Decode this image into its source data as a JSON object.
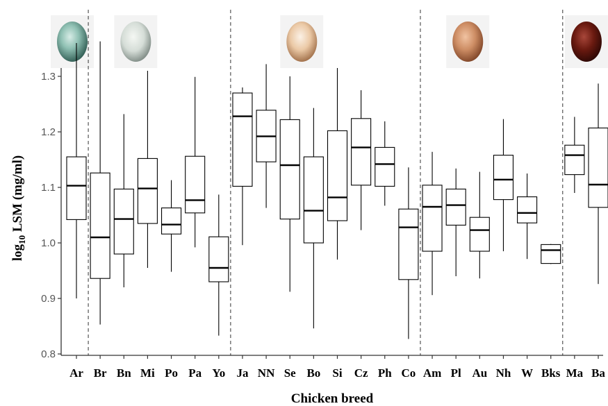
{
  "chart_data": {
    "type": "box",
    "xlabel": "Chicken breed",
    "ylabel": {
      "prefix": "log",
      "subscript": "10",
      "rest": " LSM (mg/ml)"
    },
    "ylim": [
      0.79,
      1.35
    ],
    "yticks": [
      0.8,
      0.9,
      1.0,
      1.1,
      1.2,
      1.3
    ],
    "ytick_labels": [
      "0.8",
      "0.9",
      "1.0",
      "1.1",
      "1.2",
      "1.3"
    ],
    "grid": false,
    "categories": [
      "Ar",
      "Br",
      "Bn",
      "Mi",
      "Po",
      "Pa",
      "Yo",
      "Ja",
      "NN",
      "Se",
      "Bo",
      "Si",
      "Cz",
      "Ph",
      "Co",
      "Am",
      "Pl",
      "Au",
      "Nh",
      "W",
      "Bks",
      "Ma",
      "Ba"
    ],
    "boxes": [
      {
        "category": "Ar",
        "min": 0.9,
        "q1": 1.042,
        "median": 1.103,
        "q3": 1.155,
        "max": 1.36
      },
      {
        "category": "Br",
        "min": 0.853,
        "q1": 0.936,
        "median": 1.01,
        "q3": 1.126,
        "max": 1.363
      },
      {
        "category": "Bn",
        "min": 0.92,
        "q1": 0.98,
        "median": 1.043,
        "q3": 1.097,
        "max": 1.232
      },
      {
        "category": "Mi",
        "min": 0.955,
        "q1": 1.035,
        "median": 1.098,
        "q3": 1.152,
        "max": 1.31
      },
      {
        "category": "Po",
        "min": 0.948,
        "q1": 1.016,
        "median": 1.033,
        "q3": 1.063,
        "max": 1.113
      },
      {
        "category": "Pa",
        "min": 0.992,
        "q1": 1.054,
        "median": 1.077,
        "q3": 1.156,
        "max": 1.299
      },
      {
        "category": "Yo",
        "min": 0.833,
        "q1": 0.93,
        "median": 0.955,
        "q3": 1.011,
        "max": 1.087
      },
      {
        "category": "Ja",
        "min": 0.996,
        "q1": 1.102,
        "median": 1.228,
        "q3": 1.27,
        "max": 1.28
      },
      {
        "category": "NN",
        "min": 1.063,
        "q1": 1.146,
        "median": 1.192,
        "q3": 1.239,
        "max": 1.322
      },
      {
        "category": "Se",
        "min": 0.912,
        "q1": 1.043,
        "median": 1.14,
        "q3": 1.222,
        "max": 1.3
      },
      {
        "category": "Bo",
        "min": 0.846,
        "q1": 1.0,
        "median": 1.058,
        "q3": 1.155,
        "max": 1.243
      },
      {
        "category": "Si",
        "min": 0.97,
        "q1": 1.04,
        "median": 1.082,
        "q3": 1.202,
        "max": 1.315
      },
      {
        "category": "Cz",
        "min": 1.023,
        "q1": 1.104,
        "median": 1.172,
        "q3": 1.224,
        "max": 1.275
      },
      {
        "category": "Ph",
        "min": 1.067,
        "q1": 1.102,
        "median": 1.142,
        "q3": 1.172,
        "max": 1.219
      },
      {
        "category": "Co",
        "min": 0.827,
        "q1": 0.934,
        "median": 1.028,
        "q3": 1.061,
        "max": 1.136
      },
      {
        "category": "Am",
        "min": 0.906,
        "q1": 0.985,
        "median": 1.065,
        "q3": 1.104,
        "max": 1.164
      },
      {
        "category": "Pl",
        "min": 0.94,
        "q1": 1.032,
        "median": 1.068,
        "q3": 1.097,
        "max": 1.134
      },
      {
        "category": "Au",
        "min": 0.936,
        "q1": 0.985,
        "median": 1.023,
        "q3": 1.046,
        "max": 1.128
      },
      {
        "category": "Nh",
        "min": 0.985,
        "q1": 1.078,
        "median": 1.114,
        "q3": 1.158,
        "max": 1.223
      },
      {
        "category": "W",
        "min": 0.971,
        "q1": 1.036,
        "median": 1.054,
        "q3": 1.083,
        "max": 1.125
      },
      {
        "category": "Bks",
        "min": 0.962,
        "q1": 0.963,
        "median": 0.987,
        "q3": 0.997,
        "max": 0.998
      },
      {
        "category": "Ma",
        "min": 1.09,
        "q1": 1.123,
        "median": 1.158,
        "q3": 1.176,
        "max": 1.227
      },
      {
        "category": "Ba",
        "min": 0.926,
        "q1": 1.064,
        "median": 1.105,
        "q3": 1.207,
        "max": 1.287
      }
    ],
    "group_dividers_between": [
      [
        "Ar",
        "Br"
      ],
      [
        "Yo",
        "Ja"
      ],
      [
        "Co",
        "Am"
      ],
      [
        "Bks",
        "Ma"
      ]
    ],
    "egg_swatches": [
      {
        "name": "blue-green-egg",
        "color": "#7fb4a8",
        "above_between": [
          "Ar",
          "Ar"
        ]
      },
      {
        "name": "white-green-egg",
        "color": "#d3ddd6",
        "above_between": [
          "Bn",
          "Mi"
        ]
      },
      {
        "name": "cream-egg",
        "color": "#e9c7a6",
        "above_between": [
          "Se",
          "Bo"
        ]
      },
      {
        "name": "light-brown-egg",
        "color": "#cf8f66",
        "above_between": [
          "Pl",
          "Au"
        ]
      },
      {
        "name": "dark-brown-egg",
        "color": "#6a1a10",
        "above_between": [
          "Ma",
          "Ba"
        ]
      }
    ],
    "colors": {
      "box_stroke": "#000000",
      "axis": "#333333",
      "divider": "#333333"
    }
  }
}
